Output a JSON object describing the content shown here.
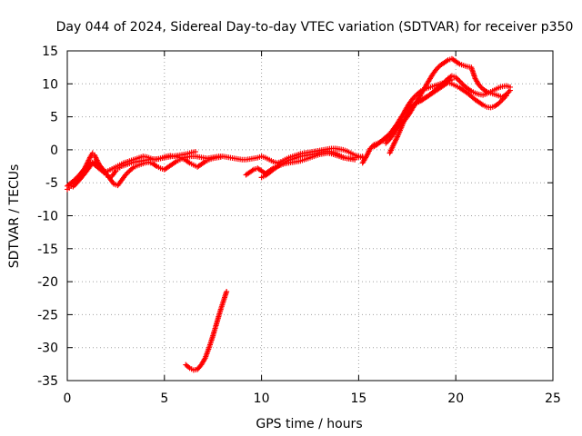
{
  "chart_data": {
    "type": "scatter",
    "title": "Day 044 of 2024, Sidereal Day-to-day VTEC variation (SDTVAR) for receiver p350",
    "xlabel": "GPS time / hours",
    "ylabel": "SDTVAR / TECUs",
    "xlim": [
      0,
      25
    ],
    "ylim": [
      -35,
      15
    ],
    "xticks": [
      "0",
      "5",
      "10",
      "15",
      "20",
      "25"
    ],
    "yticks": [
      "15",
      "10",
      "5",
      "0",
      "-5",
      "-10",
      "-15",
      "-20",
      "-25",
      "-30",
      "-35"
    ],
    "grid": true,
    "marker": "plus",
    "color": "#ff0000",
    "series": [
      {
        "x": [
          0.0,
          0.1,
          0.2,
          0.3,
          0.4,
          0.5,
          0.6,
          0.7,
          0.8,
          0.9,
          1.0,
          1.1,
          1.2,
          1.3,
          1.4,
          1.5,
          1.6,
          1.7,
          1.8,
          1.9,
          2.0,
          2.1,
          2.2,
          2.3,
          2.4,
          2.5,
          2.6,
          2.7,
          2.8,
          2.9,
          3.0,
          3.2,
          3.4,
          3.6,
          3.8,
          4.0,
          4.2,
          4.4,
          4.6,
          4.8,
          5.0,
          5.2,
          5.4,
          5.6,
          5.8,
          6.0,
          6.2,
          6.4,
          6.6
        ],
        "y": [
          -6.0,
          -5.8,
          -5.5,
          -5.2,
          -4.9,
          -4.6,
          -4.2,
          -3.8,
          -3.3,
          -2.8,
          -2.2,
          -1.6,
          -1.0,
          -0.5,
          -0.8,
          -1.4,
          -2.0,
          -2.6,
          -3.1,
          -3.5,
          -3.8,
          -4.0,
          -4.2,
          -4.0,
          -3.6,
          -3.2,
          -2.9,
          -2.7,
          -2.5,
          -2.4,
          -2.3,
          -2.1,
          -1.9,
          -1.8,
          -1.7,
          -1.6,
          -1.5,
          -1.4,
          -1.4,
          -1.3,
          -1.2,
          -1.1,
          -1.0,
          -0.9,
          -0.8,
          -0.7,
          -0.6,
          -0.4,
          -0.3
        ]
      },
      {
        "x": [
          0.0,
          0.2,
          0.4,
          0.6,
          0.8,
          1.0,
          1.2,
          1.4,
          1.6,
          1.8,
          2.0,
          2.2,
          2.4,
          2.6,
          2.8,
          3.0,
          3.2,
          3.4,
          3.6,
          3.8,
          4.0,
          4.2,
          4.4,
          4.6,
          4.8,
          5.0,
          5.2,
          5.4,
          5.6,
          5.8,
          6.0
        ],
        "y": [
          -5.5,
          -5.0,
          -4.5,
          -3.9,
          -3.2,
          -2.5,
          -2.0,
          -1.8,
          -2.2,
          -2.8,
          -3.6,
          -4.4,
          -5.2,
          -5.4,
          -4.6,
          -3.8,
          -3.2,
          -2.7,
          -2.4,
          -2.2,
          -2.0,
          -1.9,
          -2.1,
          -2.5,
          -2.8,
          -3.0,
          -2.6,
          -2.2,
          -1.8,
          -1.5,
          -1.2
        ]
      },
      {
        "x": [
          0.3,
          0.5,
          0.7,
          0.9,
          1.1,
          1.3,
          1.5,
          1.7,
          1.9,
          2.1,
          2.3,
          2.5,
          2.7,
          2.9,
          3.1,
          3.3,
          3.5,
          3.7,
          3.9,
          4.1,
          4.3,
          4.5,
          4.7,
          4.9,
          5.1,
          5.3,
          5.5,
          5.7,
          5.9,
          6.1,
          6.3,
          6.5,
          6.7,
          6.9,
          7.1,
          7.3,
          7.5,
          7.7,
          7.9
        ],
        "y": [
          -5.6,
          -5.0,
          -4.3,
          -3.6,
          -2.8,
          -2.0,
          -2.5,
          -3.0,
          -3.4,
          -3.2,
          -2.9,
          -2.6,
          -2.3,
          -2.0,
          -1.8,
          -1.6,
          -1.4,
          -1.2,
          -1.0,
          -1.1,
          -1.3,
          -1.5,
          -1.4,
          -1.2,
          -1.0,
          -0.9,
          -1.0,
          -1.1,
          -1.3,
          -1.6,
          -2.0,
          -2.3,
          -2.6,
          -2.2,
          -1.8,
          -1.5,
          -1.3,
          -1.2,
          -1.1
        ]
      },
      {
        "x": [
          6.0,
          6.2,
          6.4,
          6.6,
          6.8,
          7.0,
          7.2,
          7.4,
          7.6,
          7.8,
          8.0,
          8.2,
          8.4,
          8.6,
          8.8,
          9.0,
          9.2,
          9.4,
          9.6,
          9.8,
          10.0,
          10.2,
          10.4,
          10.6,
          10.8,
          11.0,
          11.2,
          11.4,
          11.6,
          11.8,
          12.0,
          12.2,
          12.4,
          12.6,
          12.8,
          13.0,
          13.2,
          13.4,
          13.6,
          13.8,
          14.0,
          14.2,
          14.4,
          14.6,
          14.8,
          15.0,
          15.2
        ],
        "y": [
          -1.2,
          -1.1,
          -1.0,
          -1.0,
          -1.1,
          -1.2,
          -1.3,
          -1.2,
          -1.1,
          -1.0,
          -1.0,
          -1.1,
          -1.2,
          -1.3,
          -1.4,
          -1.5,
          -1.5,
          -1.4,
          -1.3,
          -1.2,
          -1.0,
          -1.2,
          -1.5,
          -1.8,
          -2.0,
          -1.8,
          -1.5,
          -1.2,
          -1.0,
          -0.8,
          -0.6,
          -0.5,
          -0.4,
          -0.3,
          -0.2,
          -0.1,
          0.0,
          0.1,
          0.2,
          0.2,
          0.1,
          0.0,
          -0.2,
          -0.5,
          -0.8,
          -1.0,
          -1.2
        ]
      },
      {
        "x": [
          9.2,
          9.4,
          9.6,
          9.8,
          10.0,
          10.2,
          10.4,
          10.6,
          10.8,
          11.0,
          11.2,
          11.4,
          11.6,
          11.8,
          12.0,
          12.2,
          12.4,
          12.6,
          12.8,
          13.0,
          13.2,
          13.4,
          13.6,
          13.8,
          14.0,
          14.2,
          14.4,
          14.6,
          14.8,
          15.0,
          15.2
        ],
        "y": [
          -3.8,
          -3.4,
          -3.0,
          -2.8,
          -3.2,
          -3.6,
          -3.2,
          -2.8,
          -2.5,
          -2.3,
          -2.1,
          -2.0,
          -1.9,
          -1.8,
          -1.7,
          -1.5,
          -1.3,
          -1.1,
          -0.9,
          -0.7,
          -0.6,
          -0.5,
          -0.6,
          -0.8,
          -1.0,
          -1.2,
          -1.3,
          -1.3,
          -1.2,
          -1.1,
          -1.0
        ]
      },
      {
        "x": [
          10.0,
          10.2,
          10.4,
          10.6,
          10.8,
          11.0,
          11.2,
          11.4,
          11.6,
          11.8,
          12.0,
          12.2,
          12.4,
          12.6,
          12.8,
          13.0,
          13.2,
          13.4,
          13.6,
          13.8,
          14.0,
          14.2,
          14.4,
          14.6,
          14.8
        ],
        "y": [
          -4.2,
          -3.9,
          -3.5,
          -3.0,
          -2.6,
          -2.2,
          -1.9,
          -1.6,
          -1.4,
          -1.2,
          -1.0,
          -0.9,
          -0.8,
          -0.7,
          -0.6,
          -0.4,
          -0.3,
          -0.2,
          -0.3,
          -0.5,
          -0.8,
          -1.1,
          -1.3,
          -1.4,
          -1.5
        ]
      },
      {
        "x": [
          15.2,
          15.4,
          15.6,
          15.8,
          16.0,
          16.2,
          16.4,
          16.6,
          16.8,
          17.0,
          17.2,
          17.4,
          17.6,
          17.8,
          18.0,
          18.2,
          18.4,
          18.6,
          18.8,
          19.0,
          19.2,
          19.4,
          19.6,
          19.8,
          20.0,
          20.2,
          20.4,
          20.6,
          20.8,
          21.0,
          21.2,
          21.4,
          21.6,
          21.8,
          22.0,
          22.2,
          22.4,
          22.6,
          22.8
        ],
        "y": [
          -2.0,
          -1.0,
          0.2,
          0.8,
          1.0,
          1.3,
          1.8,
          2.4,
          3.2,
          4.0,
          5.0,
          5.8,
          6.4,
          6.8,
          7.1,
          7.4,
          7.8,
          8.2,
          8.7,
          9.2,
          9.7,
          10.2,
          10.8,
          11.2,
          11.0,
          10.4,
          9.8,
          9.3,
          8.9,
          8.6,
          8.4,
          8.3,
          8.5,
          8.8,
          9.1,
          9.4,
          9.6,
          9.7,
          9.5
        ]
      },
      {
        "x": [
          15.8,
          16.0,
          16.2,
          16.4,
          16.6,
          16.8,
          17.0,
          17.2,
          17.4,
          17.6,
          17.8,
          18.0,
          18.2,
          18.4,
          18.6,
          18.8,
          19.0,
          19.2,
          19.4,
          19.6,
          19.8,
          20.0,
          20.2,
          20.4,
          20.6,
          20.8,
          21.0,
          21.2,
          21.4,
          21.6,
          21.8,
          22.0,
          22.2,
          22.4,
          22.6,
          22.8
        ],
        "y": [
          0.5,
          0.9,
          1.4,
          1.9,
          2.4,
          2.9,
          3.4,
          4.0,
          4.6,
          5.4,
          6.4,
          7.4,
          8.4,
          9.4,
          10.4,
          11.4,
          12.2,
          12.8,
          13.2,
          13.6,
          13.8,
          13.4,
          13.0,
          12.8,
          12.6,
          12.5,
          10.8,
          9.8,
          9.2,
          8.8,
          8.6,
          8.4,
          8.2,
          8.0,
          8.4,
          9.0
        ]
      },
      {
        "x": [
          16.6,
          16.8,
          17.0,
          17.2,
          17.4,
          17.6,
          17.8,
          18.0,
          18.2,
          18.4,
          18.6,
          18.8,
          19.0,
          19.2,
          19.4,
          19.6,
          19.8,
          20.0,
          20.2,
          20.4,
          20.6,
          20.8,
          21.0,
          21.2,
          21.4,
          21.6,
          21.8,
          22.0,
          22.2,
          22.4,
          22.6
        ],
        "y": [
          -0.5,
          0.8,
          2.0,
          3.4,
          4.8,
          5.8,
          6.6,
          7.2,
          7.6,
          7.9,
          8.2,
          8.6,
          9.0,
          9.4,
          9.8,
          10.2,
          10.0,
          9.7,
          9.4,
          9.0,
          8.6,
          8.1,
          7.6,
          7.2,
          6.8,
          6.5,
          6.4,
          6.6,
          7.0,
          7.6,
          8.2
        ]
      },
      {
        "x": [
          16.4,
          16.6,
          16.8,
          17.0,
          17.2,
          17.4,
          17.6,
          17.8,
          18.0,
          18.2,
          18.4,
          18.6,
          18.8,
          19.0,
          19.2,
          19.4,
          19.6,
          19.8
        ],
        "y": [
          1.0,
          1.6,
          2.4,
          3.5,
          4.8,
          6.0,
          7.0,
          7.8,
          8.4,
          8.9,
          9.2,
          9.4,
          9.6,
          9.8,
          10.0,
          10.2,
          10.4,
          10.6
        ]
      },
      {
        "x": [
          6.1,
          6.3,
          6.5,
          6.7,
          6.9,
          7.1,
          7.3,
          7.5,
          7.7,
          7.9,
          8.1,
          8.2
        ],
        "y": [
          -32.6,
          -33.1,
          -33.4,
          -33.3,
          -32.6,
          -31.6,
          -30.0,
          -28.2,
          -26.2,
          -24.2,
          -22.4,
          -21.5
        ]
      }
    ]
  }
}
